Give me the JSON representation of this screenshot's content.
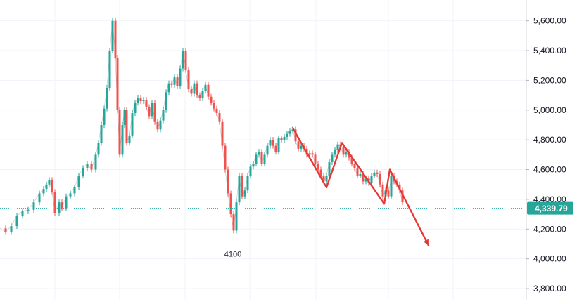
{
  "chart_data": {
    "type": "line",
    "title": "",
    "xlabel": "",
    "ylabel": "",
    "ylim": [
      3720,
      5740
    ],
    "y_ticks": [
      {
        "value": 5600,
        "label": "5,600.00"
      },
      {
        "value": 5400,
        "label": "5,400.00"
      },
      {
        "value": 5200,
        "label": "5,200.00"
      },
      {
        "value": 5000,
        "label": "5,000.00"
      },
      {
        "value": 4800,
        "label": "4,800.00"
      },
      {
        "value": 4600,
        "label": "4,600.00"
      },
      {
        "value": 4400,
        "label": "4,400.00"
      },
      {
        "value": 4200,
        "label": "4,200.00"
      },
      {
        "value": 4000,
        "label": "4,000.00"
      },
      {
        "value": 3800,
        "label": "3,800.00"
      }
    ],
    "grid": true,
    "series": [
      {
        "color": "#26a69a",
        "down_color": "#ef5350",
        "x": [
          0,
          8,
          16,
          24,
          32,
          40,
          48,
          56,
          62,
          66,
          70,
          74,
          78,
          84,
          88,
          94,
          100,
          106,
          112,
          118,
          124,
          130,
          136,
          140,
          144,
          148,
          152,
          156,
          160,
          164,
          167,
          170,
          174,
          177,
          180,
          184,
          188,
          192,
          196,
          200,
          204,
          208,
          212,
          216,
          220,
          224,
          228,
          232,
          236,
          240,
          244,
          248,
          252,
          256,
          260,
          264,
          268,
          272,
          276,
          280,
          284,
          288,
          292,
          296,
          300,
          304,
          308,
          312,
          316,
          320,
          324,
          328,
          332,
          336,
          340,
          344,
          348,
          352,
          356,
          360,
          364,
          368,
          372,
          376,
          380,
          384,
          388,
          392,
          396,
          400,
          404,
          408,
          412,
          416,
          420,
          424,
          428,
          432,
          436,
          440,
          444,
          448,
          452,
          456,
          460,
          464,
          468,
          472,
          476,
          480,
          484,
          488,
          492,
          496,
          500,
          504,
          508,
          512,
          516,
          520,
          524,
          528,
          532,
          536,
          540,
          544,
          548,
          552,
          556,
          560,
          564,
          568,
          572
        ],
        "values": [
          4205,
          4180,
          4220,
          4290,
          4320,
          4330,
          4380,
          4440,
          4470,
          4500,
          4530,
          4450,
          4310,
          4380,
          4340,
          4420,
          4440,
          4480,
          4560,
          4610,
          4640,
          4600,
          4700,
          4780,
          4900,
          5010,
          5150,
          5400,
          5600,
          5350,
          5000,
          4700,
          4900,
          5000,
          4780,
          4830,
          4980,
          5050,
          5080,
          5060,
          5070,
          5020,
          4960,
          5050,
          4920,
          4870,
          4930,
          5000,
          5120,
          5180,
          5170,
          5220,
          5160,
          5280,
          5400,
          5270,
          5140,
          5110,
          5180,
          5100,
          5080,
          5130,
          5170,
          5090,
          5050,
          5010,
          4980,
          4920,
          4760,
          4600,
          4440,
          4300,
          4190,
          4380,
          4560,
          4420,
          4460,
          4560,
          4620,
          4640,
          4700,
          4720,
          4640,
          4700,
          4760,
          4800,
          4760,
          4720,
          4810,
          4800,
          4820,
          4840,
          4860,
          4870,
          4790,
          4740,
          4760,
          4740,
          4700,
          4710,
          4700,
          4640,
          4600,
          4560,
          4520,
          4560,
          4650,
          4700,
          4730,
          4770,
          4750,
          4700,
          4720,
          4680,
          4640,
          4610,
          4560,
          4570,
          4520,
          4540,
          4510,
          4560,
          4580,
          4570,
          4500,
          4420,
          4460,
          4420,
          4560,
          4520,
          4500,
          4460,
          4380
        ]
      }
    ],
    "annotations": [
      {
        "text": "4100",
        "x": 331,
        "y": 4100
      },
      {
        "type": "arrow-path",
        "color": "#e53935",
        "points": [
          [
            416,
            4880
          ],
          [
            464,
            4480
          ],
          [
            486,
            4780
          ],
          [
            546,
            4370
          ],
          [
            554,
            4600
          ],
          [
            609,
            4090
          ]
        ]
      }
    ],
    "current_price": {
      "value": 4339.79,
      "label": "4,339.79",
      "color": "#26a69a"
    }
  }
}
